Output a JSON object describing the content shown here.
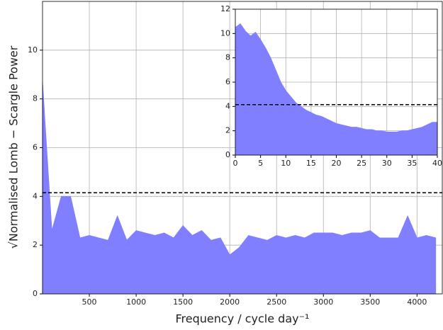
{
  "chart_data": [
    {
      "type": "area",
      "x_label": "Frequency / cycle day⁻¹",
      "y_label": "√Normalised Lomb − Scargle Power",
      "x": [
        0,
        100,
        200,
        300,
        400,
        500,
        600,
        700,
        800,
        900,
        1000,
        1100,
        1200,
        1300,
        1400,
        1500,
        1600,
        1700,
        1800,
        1900,
        2000,
        2100,
        2200,
        2300,
        2400,
        2500,
        2600,
        2700,
        2800,
        2900,
        3000,
        3100,
        3200,
        3300,
        3400,
        3500,
        3600,
        3700,
        3800,
        3900,
        4000,
        4100,
        4200
      ],
      "series": [
        {
          "color": "#7f7fff",
          "values": [
            8.7,
            2.6,
            4.0,
            4.0,
            2.3,
            2.4,
            2.3,
            2.2,
            3.2,
            2.2,
            2.6,
            2.5,
            2.4,
            2.5,
            2.3,
            2.8,
            2.4,
            2.6,
            2.2,
            2.3,
            1.6,
            1.9,
            2.4,
            2.3,
            2.2,
            2.4,
            2.3,
            2.4,
            2.3,
            2.5,
            2.5,
            2.5,
            2.4,
            2.5,
            2.5,
            2.6,
            2.3,
            2.3,
            2.3,
            3.2,
            2.3,
            2.4,
            2.3
          ]
        }
      ],
      "threshold": 4.15,
      "xlim": [
        0,
        4270
      ],
      "ylim": [
        0,
        12
      ],
      "xticks": [
        500,
        1000,
        1500,
        2000,
        2500,
        3000,
        3500,
        4000
      ],
      "yticks": [
        0,
        2,
        4,
        6,
        8,
        10
      ],
      "grid": true
    },
    {
      "type": "area",
      "x": [
        0,
        1,
        2,
        3,
        4,
        5,
        6,
        7,
        8,
        9,
        10,
        11,
        12,
        13,
        14,
        15,
        16,
        17,
        18,
        19,
        20,
        21,
        22,
        23,
        24,
        25,
        26,
        27,
        28,
        29,
        30,
        31,
        32,
        33,
        34,
        35,
        36,
        37,
        38,
        39,
        40
      ],
      "series": [
        {
          "color": "#7f7fff",
          "values": [
            10.5,
            10.8,
            10.2,
            9.8,
            10.1,
            9.5,
            8.8,
            8.0,
            7.0,
            6.0,
            5.3,
            4.8,
            4.3,
            4.0,
            3.7,
            3.5,
            3.3,
            3.2,
            3.0,
            2.8,
            2.6,
            2.5,
            2.4,
            2.3,
            2.3,
            2.2,
            2.1,
            2.1,
            2.0,
            2.0,
            1.9,
            1.9,
            1.9,
            2.0,
            2.0,
            2.1,
            2.2,
            2.3,
            2.5,
            2.7,
            2.7
          ]
        }
      ],
      "threshold": 4.15,
      "xlim": [
        0,
        40
      ],
      "ylim": [
        0,
        12
      ],
      "xticks": [
        0,
        5,
        10,
        15,
        20,
        25,
        30,
        35,
        40
      ],
      "yticks": [
        0,
        2,
        4,
        6,
        8,
        10,
        12
      ],
      "grid": true
    }
  ]
}
